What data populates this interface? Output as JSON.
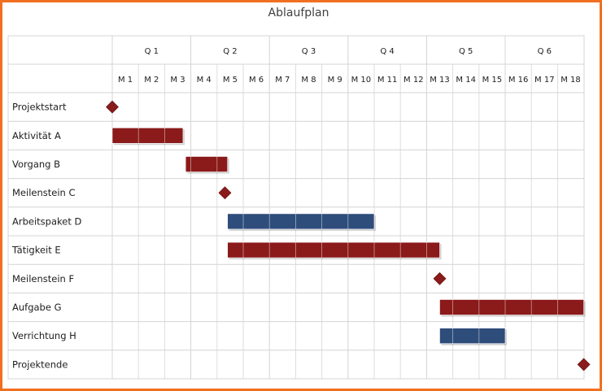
{
  "chart_data": {
    "type": "gantt",
    "title": "Ablaufplan",
    "quarters": [
      "Q 1",
      "Q 2",
      "Q 3",
      "Q 4",
      "Q 5",
      "Q 6"
    ],
    "months": [
      "M 1",
      "M 2",
      "M 3",
      "M 4",
      "M 5",
      "M 6",
      "M 7",
      "M 8",
      "M 9",
      "M 10",
      "M 11",
      "M 12",
      "M 13",
      "M 14",
      "M 15",
      "M 16",
      "M 17",
      "M 18"
    ],
    "colors": {
      "red": "#8b1a1a",
      "blue": "#2e4d7b",
      "grid": "#d4d4d4",
      "frame": "#f07020"
    },
    "tasks": [
      {
        "name": "Projektstart",
        "kind": "milestone",
        "at": 0,
        "color": "red"
      },
      {
        "name": "Aktivität A",
        "kind": "bar",
        "start": 0,
        "end": 2.7,
        "color": "red"
      },
      {
        "name": "Vorgang B",
        "kind": "bar",
        "start": 2.8,
        "end": 4.4,
        "color": "red"
      },
      {
        "name": "Meilenstein C",
        "kind": "milestone",
        "at": 4.3,
        "color": "red"
      },
      {
        "name": "Arbeitspaket D",
        "kind": "bar",
        "start": 4.4,
        "end": 10.0,
        "color": "blue"
      },
      {
        "name": "Tätigkeit E",
        "kind": "bar",
        "start": 4.4,
        "end": 12.5,
        "color": "red"
      },
      {
        "name": "Meilenstein F",
        "kind": "milestone",
        "at": 12.5,
        "color": "red"
      },
      {
        "name": "Aufgabe G",
        "kind": "bar",
        "start": 12.5,
        "end": 18,
        "color": "red"
      },
      {
        "name": "Verrichtung H",
        "kind": "bar",
        "start": 12.5,
        "end": 15,
        "color": "blue"
      },
      {
        "name": "Projektende",
        "kind": "milestone",
        "at": 18,
        "color": "red"
      }
    ]
  }
}
